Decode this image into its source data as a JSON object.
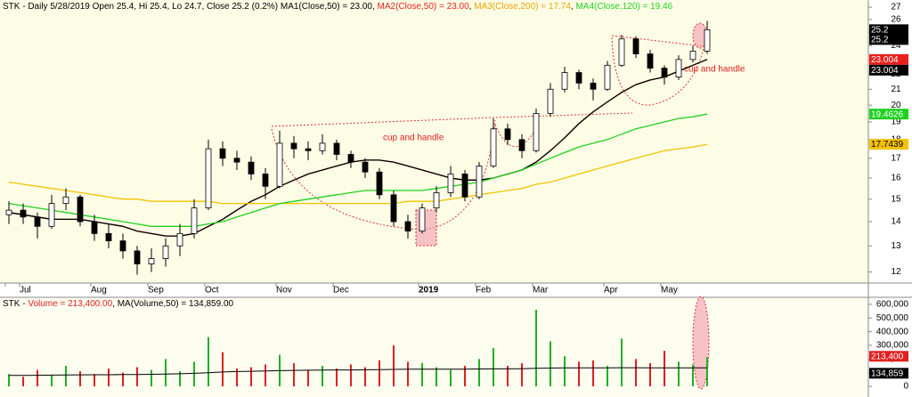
{
  "chart_data": [
    {
      "type": "candlestick",
      "title": "STK - Daily 5/28/2019 Open 25.4, Hi 25.4, Lo 24.7, Close 25.2 (0.2%)",
      "legend_separator": ", ",
      "categories": [
        "",
        "Jul",
        null,
        null,
        null,
        null,
        "Aug",
        null,
        null,
        null,
        "Sep",
        null,
        null,
        null,
        "Oct",
        null,
        null,
        null,
        null,
        "Nov",
        null,
        null,
        null,
        "Dec",
        null,
        null,
        null,
        null,
        null,
        "2019",
        null,
        null,
        null,
        "Feb",
        null,
        null,
        null,
        "Mar",
        null,
        null,
        null,
        null,
        "Apr",
        null,
        null,
        null,
        "May",
        null,
        null,
        null
      ],
      "open": [
        14.3,
        14.5,
        14.2,
        13.8,
        14.8,
        15.1,
        14.0,
        13.5,
        13.2,
        12.8,
        12.3,
        12.5,
        13.0,
        13.5,
        14.6,
        17.5,
        17.0,
        16.8,
        16.2,
        15.6,
        17.8,
        17.5,
        17.4,
        17.8,
        17.2,
        16.8,
        16.3,
        15.2,
        14.0,
        13.6,
        14.6,
        15.3,
        16.2,
        15.1,
        16.6,
        18.6,
        18.0,
        17.4,
        19.5,
        21.0,
        22.1,
        21.4,
        21.0,
        22.6,
        24.5,
        23.4,
        22.4,
        21.8,
        23.0,
        23.6
      ],
      "high": [
        14.9,
        14.8,
        14.4,
        15.2,
        15.5,
        15.2,
        14.3,
        13.9,
        13.5,
        13.0,
        12.9,
        13.3,
        13.9,
        15.0,
        18.0,
        17.9,
        17.4,
        17.1,
        16.5,
        18.5,
        18.2,
        17.9,
        18.3,
        18.0,
        17.4,
        17.0,
        16.5,
        15.4,
        14.3,
        14.8,
        15.6,
        16.6,
        16.4,
        16.8,
        19.2,
        18.9,
        18.3,
        19.8,
        21.4,
        22.5,
        22.3,
        21.7,
        22.9,
        24.8,
        24.7,
        23.7,
        22.6,
        23.3,
        24.0,
        25.9
      ],
      "low": [
        13.9,
        13.9,
        13.3,
        13.7,
        14.5,
        13.8,
        13.2,
        12.9,
        12.5,
        11.9,
        12.0,
        12.2,
        12.6,
        13.3,
        14.5,
        16.6,
        16.4,
        15.9,
        15.0,
        15.5,
        17.0,
        16.9,
        17.2,
        16.9,
        16.5,
        16.0,
        15.0,
        13.8,
        13.3,
        13.5,
        14.4,
        15.1,
        14.9,
        15.0,
        16.5,
        17.7,
        17.0,
        17.3,
        19.3,
        20.8,
        21.0,
        20.3,
        20.9,
        22.5,
        23.1,
        22.1,
        21.3,
        21.6,
        22.8,
        23.4
      ],
      "close": [
        14.5,
        14.2,
        13.8,
        14.8,
        15.1,
        14.0,
        13.5,
        13.2,
        12.8,
        12.3,
        12.5,
        13.0,
        13.5,
        14.6,
        17.5,
        17.0,
        16.8,
        16.2,
        15.6,
        17.8,
        17.5,
        17.4,
        17.8,
        17.2,
        16.8,
        16.3,
        15.2,
        14.0,
        13.6,
        14.6,
        15.3,
        16.2,
        15.1,
        16.6,
        18.6,
        18.0,
        17.4,
        19.5,
        21.0,
        22.1,
        21.4,
        21.0,
        22.6,
        24.5,
        23.4,
        22.4,
        21.8,
        23.0,
        23.6,
        25.2
      ],
      "price_tags": [
        25.2,
        25.2
      ],
      "series": [
        {
          "name": "MA2(Close,50) = 23.00",
          "color": "#e8201c",
          "tag": 23.004,
          "values": [
            14.4,
            14.3,
            14.2,
            14.1,
            14.1,
            14.1,
            14.0,
            13.9,
            13.8,
            13.6,
            13.5,
            13.4,
            13.4,
            13.5,
            13.8,
            14.1,
            14.5,
            14.9,
            15.2,
            15.6,
            15.9,
            16.2,
            16.4,
            16.6,
            16.8,
            16.9,
            16.9,
            16.8,
            16.6,
            16.4,
            16.2,
            16.0,
            15.9,
            15.9,
            16.0,
            16.2,
            16.4,
            16.8,
            17.4,
            18.1,
            18.9,
            19.6,
            20.2,
            20.8,
            21.3,
            21.6,
            21.8,
            22.2,
            22.6,
            23.004
          ]
        },
        {
          "name": "MA1(Close,50) = 23.00",
          "color": "#000000",
          "tag": 23.004,
          "values": [
            14.4,
            14.3,
            14.2,
            14.1,
            14.1,
            14.1,
            14.0,
            13.9,
            13.8,
            13.6,
            13.5,
            13.4,
            13.4,
            13.5,
            13.8,
            14.1,
            14.5,
            14.9,
            15.2,
            15.6,
            15.9,
            16.2,
            16.4,
            16.6,
            16.8,
            16.9,
            16.9,
            16.8,
            16.6,
            16.4,
            16.2,
            16.0,
            15.9,
            15.9,
            16.0,
            16.2,
            16.4,
            16.8,
            17.4,
            18.1,
            18.9,
            19.6,
            20.2,
            20.8,
            21.3,
            21.6,
            21.8,
            22.2,
            22.6,
            23.004
          ]
        },
        {
          "name": "MA3(Close,200) = 17.74",
          "color": "#f5c200",
          "tag": 17.7439,
          "values": [
            15.8,
            15.7,
            15.6,
            15.5,
            15.4,
            15.3,
            15.2,
            15.1,
            15.0,
            15.0,
            14.9,
            14.9,
            14.9,
            14.9,
            14.9,
            14.8,
            14.8,
            14.8,
            14.8,
            14.8,
            14.8,
            14.8,
            14.8,
            14.8,
            14.8,
            14.8,
            14.8,
            14.8,
            14.9,
            14.9,
            14.9,
            15.0,
            15.1,
            15.2,
            15.3,
            15.4,
            15.5,
            15.7,
            15.8,
            16.0,
            16.2,
            16.4,
            16.6,
            16.8,
            17.0,
            17.2,
            17.4,
            17.5,
            17.6,
            17.7439
          ]
        },
        {
          "name": "MA4(Close,120) = 19.46",
          "color": "#1fd11f",
          "tag": 19.4626,
          "values": [
            14.8,
            14.7,
            14.6,
            14.5,
            14.4,
            14.3,
            14.2,
            14.1,
            14.0,
            13.9,
            13.8,
            13.8,
            13.8,
            13.8,
            13.9,
            14.0,
            14.2,
            14.4,
            14.6,
            14.8,
            14.9,
            15.0,
            15.1,
            15.2,
            15.3,
            15.4,
            15.4,
            15.4,
            15.4,
            15.4,
            15.5,
            15.6,
            15.7,
            15.8,
            16.0,
            16.2,
            16.4,
            16.7,
            17.0,
            17.3,
            17.6,
            17.8,
            18.0,
            18.3,
            18.6,
            18.8,
            19.0,
            19.2,
            19.3,
            19.4626
          ]
        }
      ],
      "legend_order": [
        1,
        0,
        2,
        3
      ],
      "annotations": [
        "cup and handle",
        "cup and handle"
      ],
      "log_scale": true,
      "ylim": [
        11.6,
        27.6
      ],
      "yticks": [
        12,
        13,
        14,
        15,
        16,
        17,
        18,
        19,
        20,
        21,
        22,
        23,
        24,
        25,
        26,
        27
      ]
    },
    {
      "type": "bar",
      "title": "STK",
      "title_separator": " - ",
      "legend_separator": ", ",
      "up_color": "#22b022",
      "down_color": "#e02020",
      "series": [
        {
          "name": "Volume = 213,400.00",
          "color": "#e02020",
          "tag": {
            "value": 213400,
            "label": "213,400"
          },
          "values": [
            90000,
            70000,
            120000,
            80000,
            150000,
            110000,
            90000,
            130000,
            100000,
            140000,
            120000,
            200000,
            110000,
            180000,
            360000,
            250000,
            130000,
            140000,
            160000,
            230000,
            170000,
            120000,
            150000,
            130000,
            160000,
            140000,
            190000,
            300000,
            180000,
            170000,
            140000,
            120000,
            150000,
            200000,
            280000,
            150000,
            170000,
            560000,
            330000,
            220000,
            180000,
            190000,
            150000,
            350000,
            200000,
            170000,
            260000,
            180000,
            160000,
            213400
          ]
        },
        {
          "name": "MA(Volume,50) = 134,859.00",
          "color": "#000000",
          "tag": {
            "value": 134859,
            "label": "134,859"
          },
          "values": [
            80000,
            80000,
            81000,
            82000,
            83000,
            84000,
            85000,
            85000,
            86000,
            87000,
            88000,
            90000,
            92000,
            95000,
            100000,
            105000,
            108000,
            110000,
            112000,
            115000,
            117000,
            118000,
            119000,
            120000,
            120000,
            121000,
            122000,
            124000,
            125000,
            126000,
            126000,
            126000,
            126000,
            127000,
            128000,
            128000,
            129000,
            132000,
            134000,
            135000,
            135000,
            135000,
            135000,
            136000,
            136000,
            135000,
            135000,
            135000,
            135000,
            134859
          ]
        }
      ],
      "ylim": [
        -78000,
        645000
      ],
      "yticks": [
        {
          "value": 0,
          "label": "0"
        },
        {
          "value": 100000,
          "label": "100,000"
        },
        {
          "value": 200000,
          "label": "200,000"
        },
        {
          "value": 300000,
          "label": "300,000"
        },
        {
          "value": 400000,
          "label": "400,000"
        },
        {
          "value": 500000,
          "label": "500,000"
        },
        {
          "value": 600000,
          "label": "600,000"
        }
      ]
    }
  ]
}
